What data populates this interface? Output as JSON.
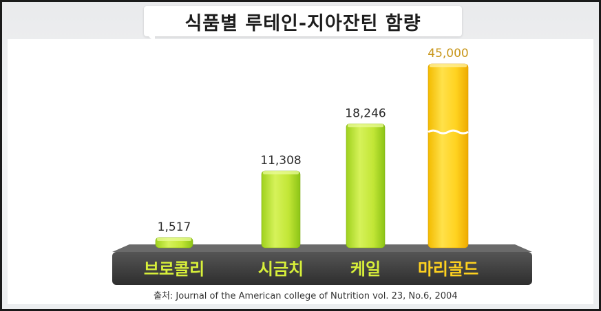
{
  "title": "식품별 루테인-지아잔틴 함량",
  "source": "출처: Journal of the American college of Nutrition vol. 23, No.6, 2004",
  "colors": {
    "green_bar": "#b9e23a",
    "gold_bar": "#ffd21f",
    "green_label": "#d8f03a",
    "gold_label": "#ffd21f",
    "platform": "#3d3d3d",
    "value_dark": "#2a2a2a",
    "value_gold": "#c8961a"
  },
  "chart_data": {
    "type": "bar",
    "title": "식품별 루테인-지아잔틴 함량",
    "categories": [
      "브로콜리",
      "시금치",
      "케일",
      "마리골드"
    ],
    "values": [
      1517,
      11308,
      18246,
      45000
    ],
    "value_labels": [
      "1,517",
      "11,308",
      "18,246",
      "45,000"
    ],
    "axis_break": "마리골드",
    "grid": false,
    "legend": "none"
  }
}
